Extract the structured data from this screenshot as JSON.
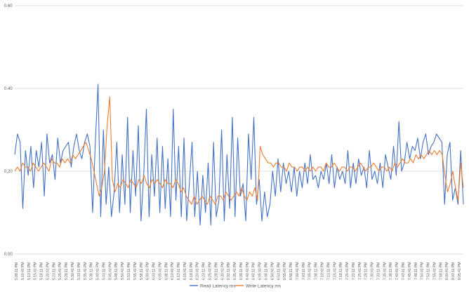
{
  "chart_data": {
    "type": "line",
    "title": "",
    "xlabel": "",
    "ylabel": "",
    "ylim": [
      0,
      0.6
    ],
    "yticks": [
      "0.00",
      "0.20",
      "0.40",
      "0.60"
    ],
    "grid": true,
    "legend_position": "bottom",
    "x_labels": [
      "5:08:11 PM",
      "5:10:41 PM",
      "5:13:11 PM",
      "5:15:41 PM",
      "5:18:11 PM",
      "5:20:41 PM",
      "5:23:11 PM",
      "5:25:41 PM",
      "5:28:11 PM",
      "5:30:41 PM",
      "5:33:11 PM",
      "5:35:41 PM",
      "5:38:11 PM",
      "5:40:41 PM",
      "5:43:11 PM",
      "5:45:41 PM",
      "5:48:11 PM",
      "5:50:41 PM",
      "5:53:11 PM",
      "5:55:41 PM",
      "5:58:11 PM",
      "6:00:41 PM",
      "6:03:11 PM",
      "6:05:41 PM",
      "6:08:11 PM",
      "6:10:41 PM",
      "6:13:11 PM",
      "6:15:41 PM",
      "6:18:11 PM",
      "6:20:41 PM",
      "6:23:11 PM",
      "6:25:41 PM",
      "6:28:11 PM",
      "6:30:41 PM",
      "6:33:11 PM",
      "6:35:41 PM",
      "6:38:11 PM",
      "6:40:41 PM",
      "6:43:11 PM",
      "6:45:41 PM",
      "6:48:11 PM",
      "6:50:41 PM",
      "6:53:11 PM",
      "6:55:41 PM",
      "6:58:11 PM",
      "7:00:41 PM",
      "7:03:11 PM",
      "7:05:41 PM",
      "7:08:11 PM",
      "7:10:41 PM",
      "7:13:11 PM",
      "7:15:41 PM",
      "7:18:11 PM",
      "7:20:41 PM",
      "7:23:11 PM",
      "7:25:41 PM",
      "7:28:11 PM",
      "7:30:41 PM",
      "7:33:11 PM",
      "7:35:41 PM",
      "7:38:11 PM",
      "7:40:41 PM",
      "7:43:11 PM",
      "7:45:41 PM",
      "7:48:11 PM",
      "7:50:41 PM",
      "7:53:11 PM",
      "7:55:41 PM",
      "7:58:11 PM",
      "8:00:41 PM",
      "8:03:11 PM",
      "8:05:41 PM"
    ],
    "series": [
      {
        "name": "Read Latency ms",
        "color": "#4472C4",
        "values": [
          0.24,
          0.29,
          0.27,
          0.11,
          0.25,
          0.19,
          0.26,
          0.16,
          0.25,
          0.21,
          0.27,
          0.14,
          0.29,
          0.22,
          0.24,
          0.18,
          0.28,
          0.22,
          0.25,
          0.26,
          0.27,
          0.21,
          0.26,
          0.29,
          0.25,
          0.23,
          0.27,
          0.29,
          0.26,
          0.1,
          0.27,
          0.41,
          0.09,
          0.3,
          0.12,
          0.21,
          0.09,
          0.15,
          0.27,
          0.1,
          0.24,
          0.12,
          0.33,
          0.1,
          0.25,
          0.14,
          0.31,
          0.08,
          0.19,
          0.35,
          0.09,
          0.24,
          0.14,
          0.28,
          0.1,
          0.26,
          0.11,
          0.23,
          0.09,
          0.35,
          0.13,
          0.26,
          0.09,
          0.28,
          0.08,
          0.17,
          0.27,
          0.09,
          0.2,
          0.07,
          0.19,
          0.1,
          0.22,
          0.07,
          0.27,
          0.09,
          0.13,
          0.3,
          0.08,
          0.24,
          0.11,
          0.33,
          0.09,
          0.28,
          0.14,
          0.17,
          0.08,
          0.29,
          0.18,
          0.33,
          0.12,
          0.18,
          0.08,
          0.15,
          0.09,
          0.12,
          0.2,
          0.14,
          0.23,
          0.15,
          0.22,
          0.17,
          0.2,
          0.15,
          0.21,
          0.14,
          0.2,
          0.16,
          0.22,
          0.17,
          0.24,
          0.18,
          0.19,
          0.16,
          0.2,
          0.18,
          0.22,
          0.17,
          0.24,
          0.16,
          0.21,
          0.18,
          0.2,
          0.17,
          0.25,
          0.16,
          0.22,
          0.17,
          0.23,
          0.19,
          0.21,
          0.16,
          0.25,
          0.18,
          0.2,
          0.17,
          0.22,
          0.16,
          0.24,
          0.21,
          0.18,
          0.26,
          0.19,
          0.32,
          0.2,
          0.22,
          0.27,
          0.23,
          0.26,
          0.25,
          0.28,
          0.23,
          0.27,
          0.29,
          0.24,
          0.26,
          0.27,
          0.29,
          0.28,
          0.27,
          0.12,
          0.24,
          0.27,
          0.13,
          0.16,
          0.12,
          0.25,
          0.12
        ]
      },
      {
        "name": "Write Latency ms",
        "color": "#ED7D31",
        "values": [
          0.2,
          0.21,
          0.2,
          0.22,
          0.21,
          0.21,
          0.2,
          0.22,
          0.21,
          0.2,
          0.21,
          0.22,
          0.21,
          0.2,
          0.23,
          0.22,
          0.22,
          0.21,
          0.23,
          0.22,
          0.23,
          0.22,
          0.24,
          0.23,
          0.24,
          0.25,
          0.26,
          0.27,
          0.25,
          0.23,
          0.2,
          0.17,
          0.14,
          0.16,
          0.2,
          0.31,
          0.38,
          0.18,
          0.15,
          0.17,
          0.16,
          0.18,
          0.17,
          0.16,
          0.18,
          0.17,
          0.16,
          0.18,
          0.17,
          0.19,
          0.17,
          0.16,
          0.18,
          0.17,
          0.18,
          0.17,
          0.16,
          0.18,
          0.17,
          0.17,
          0.16,
          0.18,
          0.17,
          0.15,
          0.16,
          0.14,
          0.13,
          0.12,
          0.14,
          0.12,
          0.13,
          0.14,
          0.13,
          0.12,
          0.14,
          0.13,
          0.12,
          0.14,
          0.14,
          0.13,
          0.15,
          0.14,
          0.13,
          0.14,
          0.15,
          0.14,
          0.16,
          0.14,
          0.13,
          0.15,
          0.14,
          0.16,
          0.13,
          0.26,
          0.24,
          0.23,
          0.22,
          0.22,
          0.21,
          0.22,
          0.22,
          0.21,
          0.21,
          0.2,
          0.22,
          0.21,
          0.21,
          0.2,
          0.21,
          0.21,
          0.2,
          0.21,
          0.2,
          0.21,
          0.2,
          0.21,
          0.21,
          0.2,
          0.22,
          0.21,
          0.21,
          0.22,
          0.21,
          0.2,
          0.21,
          0.21,
          0.2,
          0.21,
          0.21,
          0.2,
          0.21,
          0.22,
          0.21,
          0.2,
          0.21,
          0.21,
          0.22,
          0.21,
          0.2,
          0.21,
          0.21,
          0.2,
          0.21,
          0.2,
          0.22,
          0.21,
          0.22,
          0.23,
          0.22,
          0.22,
          0.23,
          0.22,
          0.24,
          0.23,
          0.24,
          0.23,
          0.24,
          0.25,
          0.24,
          0.25,
          0.24,
          0.25,
          0.24,
          0.19,
          0.15,
          0.17,
          0.2,
          0.16,
          0.13,
          0.22,
          0.16
        ]
      }
    ]
  }
}
